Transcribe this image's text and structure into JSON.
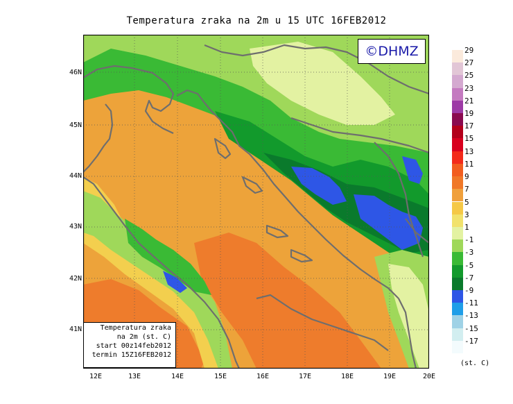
{
  "title": "Temperatura zraka na 2m u 15 UTC 16FEB2012",
  "copyright": "©DHMZ",
  "info_box": [
    "Temperatura zraka",
    "na 2m (st. C)",
    "start 00z14feb2012",
    "termin 15Z16FEB2012"
  ],
  "lat_labels": [
    "46N",
    "45N",
    "44N",
    "43N",
    "42N",
    "41N"
  ],
  "lon_labels": [
    "12E",
    "13E",
    "14E",
    "15E",
    "16E",
    "17E",
    "18E",
    "19E",
    "20E"
  ],
  "legend": {
    "units": "(st. C)",
    "labels": [
      "29",
      "27",
      "25",
      "23",
      "21",
      "19",
      "17",
      "15",
      "13",
      "11",
      "9",
      "7",
      "5",
      "3",
      "1",
      "-1",
      "-3",
      "-5",
      "-7",
      "-9",
      "-11",
      "-13",
      "-15",
      "-17"
    ],
    "colors": [
      "#fbeadc",
      "#e2c6d6",
      "#d4a9d0",
      "#c47ac0",
      "#9d3aa6",
      "#8a0a4f",
      "#b3001b",
      "#d8001e",
      "#f32a1a",
      "#f25d1f",
      "#f07828",
      "#f0a03c",
      "#f5c846",
      "#f1e26c",
      "#e3f2a2",
      "#9fd85a",
      "#3aba35",
      "#129a2c",
      "#0a7a2c",
      "#2e56e6",
      "#1f9ee8",
      "#9fd2e6",
      "#d2eef0",
      "#f3fbfd"
    ]
  },
  "fields": {
    "sea_color": "#eda33a",
    "sea_warm_color": "#ee7c2c",
    "coast_color": "#f3cf4e",
    "land_low_color": "#9fd85a",
    "land_mid_color": "#3aba35",
    "land_cold_color": "#129a2c",
    "land_colder_color": "#0a7a2c",
    "land_coldest_color": "#2e56e6",
    "lowland_color": "#e3f2a2",
    "border_color": "#6e6e6e"
  }
}
